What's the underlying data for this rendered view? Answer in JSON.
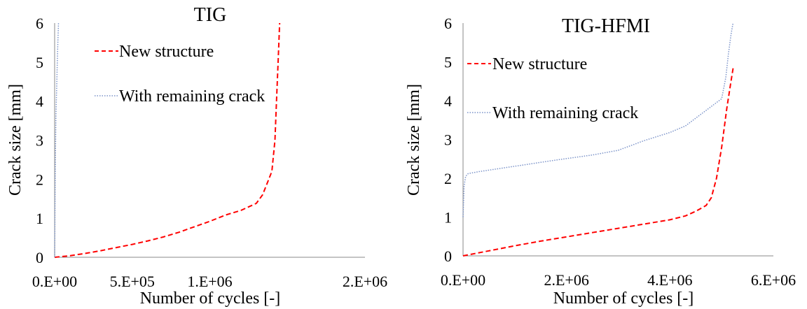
{
  "chart_data": [
    {
      "type": "line",
      "title": "TIG",
      "xlabel": "Number of cycles [-]",
      "ylabel": "Crack size [mm]",
      "xlim": [
        0,
        2000000
      ],
      "ylim": [
        0,
        6
      ],
      "xticks": [
        0,
        500000,
        1000000,
        1500000,
        2000000
      ],
      "xtick_labels": [
        "0.E+00",
        "5.E+05",
        "1.E+06",
        "",
        "2.E+06"
      ],
      "yticks": [
        0,
        1,
        2,
        3,
        4,
        5,
        6
      ],
      "ytick_labels": [
        "0",
        "1",
        "2",
        "3",
        "4",
        "5",
        "6"
      ],
      "grid": false,
      "legend_position": "upper-left",
      "series": [
        {
          "name": "New structure",
          "color": "#ff0000",
          "style": "dashed",
          "x": [
            0,
            100000,
            200000,
            300000,
            400000,
            500000,
            600000,
            700000,
            800000,
            900000,
            1000000,
            1100000,
            1200000,
            1300000,
            1340000,
            1370000,
            1400000,
            1420000,
            1430000,
            1440000,
            1450000
          ],
          "y": [
            0,
            0.04,
            0.1,
            0.17,
            0.25,
            0.33,
            0.42,
            0.52,
            0.64,
            0.78,
            0.92,
            1.08,
            1.2,
            1.38,
            1.6,
            1.9,
            2.2,
            3.0,
            4.0,
            5.0,
            6.0
          ]
        },
        {
          "name": "With remaining crack",
          "color": "#7b93c9",
          "style": "dotted",
          "x": [
            0,
            2000,
            5000,
            8000,
            12000,
            16000,
            20000,
            25000
          ],
          "y": [
            0,
            1.0,
            2.5,
            3.6,
            4.2,
            4.8,
            5.4,
            6.0
          ]
        }
      ],
      "legend_entries": [
        "New structure",
        "With remaining crack"
      ]
    },
    {
      "type": "line",
      "title": "TIG-HFMI",
      "xlabel": "Number of cycles  [-]",
      "ylabel": "Crack size [mm]",
      "xlim": [
        0,
        6000000
      ],
      "ylim": [
        0,
        6
      ],
      "xticks": [
        0,
        2000000,
        4000000,
        6000000
      ],
      "xtick_labels": [
        "0.E+00",
        "2.E+06",
        "4.E+06",
        "6.E+06"
      ],
      "yticks": [
        0,
        1,
        2,
        3,
        4,
        5,
        6
      ],
      "ytick_labels": [
        "0",
        "1",
        "2",
        "3",
        "4",
        "5",
        "6"
      ],
      "grid": false,
      "legend_position": "upper-left",
      "series": [
        {
          "name": "New structure",
          "color": "#ff0000",
          "style": "dashed",
          "x": [
            0,
            500000,
            1000000,
            1500000,
            2000000,
            2500000,
            3000000,
            3500000,
            4000000,
            4300000,
            4500000,
            4700000,
            4800000,
            4900000,
            5000000,
            5100000,
            5180000,
            5230000
          ],
          "y": [
            0,
            0.13,
            0.26,
            0.38,
            0.49,
            0.6,
            0.71,
            0.82,
            0.93,
            1.03,
            1.15,
            1.3,
            1.5,
            2.0,
            2.8,
            3.8,
            4.5,
            4.9
          ]
        },
        {
          "name": "With remaining crack",
          "color": "#7b93c9",
          "style": "dotted",
          "x": [
            0,
            20000,
            50000,
            100000,
            300000,
            700000,
            1200000,
            1800000,
            2500000,
            3000000,
            3500000,
            4000000,
            4300000,
            4600000,
            4800000,
            5000000,
            5080000,
            5130000,
            5180000,
            5220000
          ],
          "y": [
            1.0,
            1.8,
            2.05,
            2.12,
            2.17,
            2.25,
            2.35,
            2.47,
            2.6,
            2.72,
            2.97,
            3.18,
            3.35,
            3.65,
            3.85,
            4.05,
            4.6,
            5.2,
            5.7,
            6.0
          ]
        }
      ],
      "legend_entries": [
        "New structure",
        "With remaining crack"
      ]
    }
  ]
}
